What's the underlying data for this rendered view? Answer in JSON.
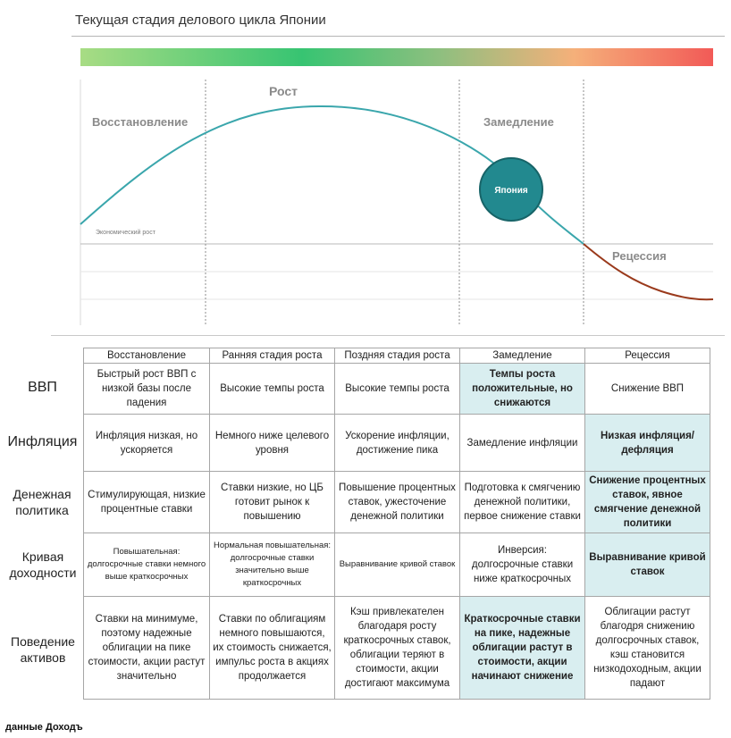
{
  "title": "Текущая стадия делового цикла Японии",
  "diagram": {
    "stages": {
      "recovery": "Восстановление",
      "growth": "Рост",
      "slowdown": "Замедление",
      "recession": "Рецессия"
    },
    "baseline_label": "Экономический рост",
    "marker_label": "Япония",
    "colors": {
      "curve": "#3aa6ac",
      "recession_curve": "#9a3a1c",
      "marker_fill": "#22898f",
      "marker_stroke": "#176468"
    }
  },
  "table": {
    "columns": [
      "Восстановление",
      "Ранняя стадия роста",
      "Поздняя стадия роста",
      "Замедление",
      "Рецессия"
    ],
    "rows": [
      {
        "label": "ВВП",
        "cells": [
          "Быстрый рост ВВП с низкой базы после падения",
          "Высокие темпы роста",
          "Высокие темпы роста",
          "Темпы роста положительные, но снижаются",
          "Снижение ВВП"
        ]
      },
      {
        "label": "Инфляция",
        "cells": [
          "Инфляция низкая, но ускоряется",
          "Немного ниже целевого уровня",
          "Ускорение инфляции, достижение пика",
          "Замедление инфляции",
          "Низкая инфляция/дефляция"
        ]
      },
      {
        "label": "Денежная политика",
        "cells": [
          "Стимулирующая, низкие процентные ставки",
          "Ставки низкие, но ЦБ готовит рынок к повышению",
          "Повышение процентных ставок, ужесточение денежной политики",
          "Подготовка к смягчению денежной политики, первое снижение ставки",
          "Снижение процентных ставок, явное смягчение денежной политики"
        ]
      },
      {
        "label": "Кривая доходности",
        "cells": [
          "Повышательная: долгосрочные ставки немного выше краткосрочных",
          "Нормальная повышательная: долгосрочные ставки значительно выше краткосрочных",
          "Выравнивание кривой ставок",
          "Инверсия: долгосрочные ставки ниже краткосрочных",
          "Выравнивание кривой ставок"
        ]
      },
      {
        "label": "Поведение активов",
        "cells": [
          "Ставки на минимуме, поэтому надежные облигации на пике стоимости, акции растут значительно",
          "Ставки по облигациям немного повышаются, их стоимость снижается, импульс роста в акциях продолжается",
          "Кэш привлекателен благодаря росту краткосрочных ставок, облигации теряют в стоимости, акции достигают максимума",
          "Краткосрочные ставки на пике, надежные облигации растут в стоимости, акции начинают снижение",
          "Облигации растут благодря снижению долгосрочных ставок, кэш становится низкодоходным, акции падают"
        ]
      }
    ]
  },
  "footer": {
    "source": "данные",
    "brand": "Доходъ"
  }
}
